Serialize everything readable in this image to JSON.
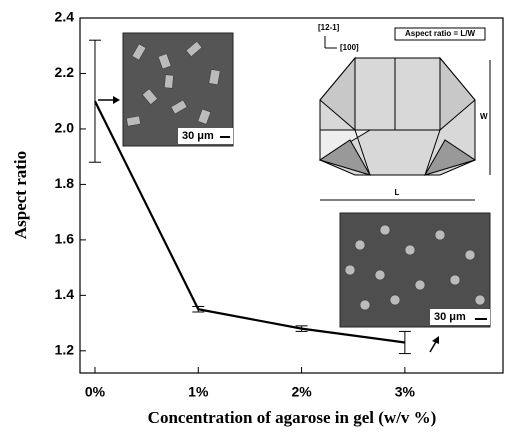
{
  "chart_data": {
    "type": "line",
    "x_label": "Concentration of agarose in gel (w/v %)",
    "y_label": "Aspect ratio",
    "x": [
      0,
      1,
      2,
      3
    ],
    "series": [
      {
        "color": "#000000",
        "values": [
          2.1,
          1.35,
          1.28,
          1.23
        ],
        "errors": [
          0.22,
          0.01,
          0.01,
          0.04
        ]
      }
    ],
    "xlim": [
      -0.145,
      3.95
    ],
    "xticks": [
      {
        "value": 0,
        "label": "0%"
      },
      {
        "value": 1,
        "label": "1%"
      },
      {
        "value": 2,
        "label": "2%"
      },
      {
        "value": 3,
        "label": "3%"
      }
    ],
    "ylim": [
      1.12,
      2.4
    ],
    "yticks": [
      {
        "value": 1.2,
        "label": "1.2"
      },
      {
        "value": 1.4,
        "label": "1.4"
      },
      {
        "value": 1.6,
        "label": "1.6"
      },
      {
        "value": 1.8,
        "label": "1.8"
      },
      {
        "value": 2,
        "label": "2.0"
      },
      {
        "value": 2.2,
        "label": "2.2"
      },
      {
        "value": 2.4,
        "label": "2.4"
      }
    ],
    "annotations": {
      "direction_1": "[12-1]",
      "direction_2": "[100]",
      "definition": "Aspect ratio = L/W",
      "width": "W",
      "length": "L",
      "scale_bar": "30 μm"
    }
  }
}
